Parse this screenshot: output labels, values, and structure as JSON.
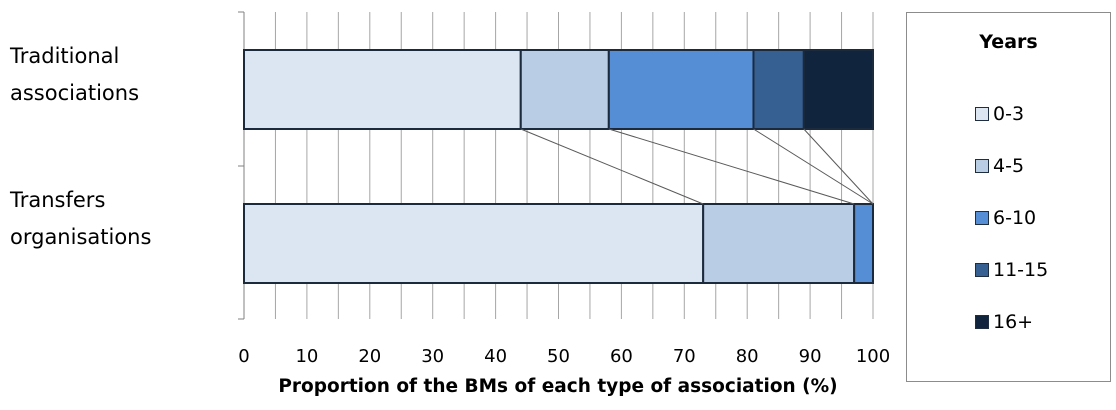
{
  "chart_data": {
    "type": "bar",
    "orientation": "horizontal",
    "stacked": true,
    "percent": true,
    "categories": [
      "Traditional associations",
      "Transfers organisations"
    ],
    "category_lines": [
      [
        "Traditional",
        "associations"
      ],
      [
        "Transfers",
        "organisations"
      ]
    ],
    "series": [
      {
        "name": "0-3",
        "color": "#dce6f2",
        "values": [
          44,
          73
        ]
      },
      {
        "name": "4-5",
        "color": "#b9cde5",
        "values": [
          14,
          24
        ]
      },
      {
        "name": "6-10",
        "color": "#558ed5",
        "values": [
          23,
          3
        ]
      },
      {
        "name": "11-15",
        "color": "#376092",
        "values": [
          8,
          0
        ]
      },
      {
        "name": "16+",
        "color": "#10243e",
        "values": [
          11,
          0
        ]
      }
    ],
    "xlim": [
      0,
      100
    ],
    "xticks": [
      0,
      10,
      20,
      30,
      40,
      50,
      60,
      70,
      80,
      90,
      100
    ],
    "xlabel": "Proportion of the BMs of each type of association (%)",
    "legend_title": "Years",
    "legend_position": "right",
    "grid": "vertical minor every 5",
    "series_connector_lines": true
  }
}
